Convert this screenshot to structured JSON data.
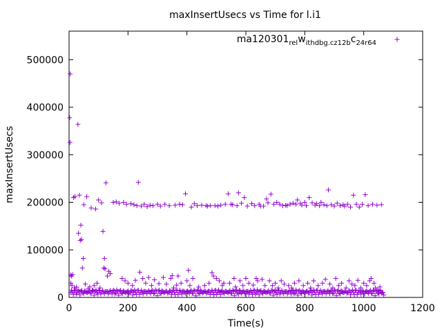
{
  "chart_data": {
    "type": "scatter",
    "title": "maxInsertUsecs vs Time for l.i1",
    "xlabel": "Time(s)",
    "ylabel": "maxInsertUsecs",
    "xlim": [
      0,
      1200
    ],
    "ylim": [
      0,
      560000
    ],
    "xticks": [
      0,
      200,
      400,
      600,
      800,
      1000,
      1200
    ],
    "xtick_labels": [
      "0",
      "200",
      "400",
      "600",
      "800",
      "1000",
      "1200"
    ],
    "yticks": [
      0,
      100000,
      200000,
      300000,
      400000,
      500000
    ],
    "ytick_labels": [
      "0",
      "100000",
      "200000",
      "300000",
      "400000",
      "500000"
    ],
    "legend": {
      "position": "top-right",
      "label_parts": [
        "ma120301",
        "rel",
        "w",
        "ithdbg.cz12b",
        "c",
        "24r64"
      ]
    },
    "marker": "plus",
    "color": "#9400d3",
    "series": [
      {
        "name": "ma120301_rel_withdbg.cz12b_c24r64",
        "points": [
          [
            2,
            378000
          ],
          [
            3,
            326000
          ],
          [
            4,
            470000
          ],
          [
            5,
            47000
          ],
          [
            6,
            30000
          ],
          [
            8,
            45000
          ],
          [
            10,
            25000
          ],
          [
            12,
            48000
          ],
          [
            15,
            210000
          ],
          [
            18,
            20000
          ],
          [
            20,
            212000
          ],
          [
            25,
            22000
          ],
          [
            30,
            364000
          ],
          [
            32,
            135000
          ],
          [
            35,
            215000
          ],
          [
            38,
            120000
          ],
          [
            40,
            152000
          ],
          [
            42,
            122000
          ],
          [
            45,
            62000
          ],
          [
            48,
            82000
          ],
          [
            50,
            195000
          ],
          [
            55,
            28000
          ],
          [
            60,
            212000
          ],
          [
            65,
            18000
          ],
          [
            70,
            22000
          ],
          [
            75,
            188000
          ],
          [
            80,
            15000
          ],
          [
            85,
            25000
          ],
          [
            90,
            186000
          ],
          [
            95,
            30000
          ],
          [
            100,
            205000
          ],
          [
            105,
            20000
          ],
          [
            110,
            199000
          ],
          [
            115,
            139000
          ],
          [
            118,
            62000
          ],
          [
            120,
            82000
          ],
          [
            122,
            60000
          ],
          [
            125,
            241000
          ],
          [
            130,
            45000
          ],
          [
            135,
            55000
          ],
          [
            140,
            50000
          ],
          [
            150,
            200000
          ],
          [
            160,
            201000
          ],
          [
            170,
            198000
          ],
          [
            180,
            40000
          ],
          [
            185,
            200000
          ],
          [
            190,
            35000
          ],
          [
            195,
            196000
          ],
          [
            200,
            30000
          ],
          [
            210,
            197000
          ],
          [
            215,
            25000
          ],
          [
            220,
            195000
          ],
          [
            225,
            36000
          ],
          [
            230,
            193000
          ],
          [
            235,
            242000
          ],
          [
            240,
            53000
          ],
          [
            245,
            192000
          ],
          [
            250,
            40000
          ],
          [
            255,
            196000
          ],
          [
            260,
            30000
          ],
          [
            265,
            191000
          ],
          [
            270,
            42000
          ],
          [
            275,
            194000
          ],
          [
            280,
            25000
          ],
          [
            285,
            193000
          ],
          [
            290,
            37000
          ],
          [
            300,
            196000
          ],
          [
            305,
            29000
          ],
          [
            310,
            192000
          ],
          [
            320,
            42000
          ],
          [
            325,
            196000
          ],
          [
            330,
            28000
          ],
          [
            340,
            193000
          ],
          [
            345,
            40000
          ],
          [
            350,
            46000
          ],
          [
            355,
            20000
          ],
          [
            360,
            194000
          ],
          [
            365,
            26000
          ],
          [
            370,
            45000
          ],
          [
            375,
            196000
          ],
          [
            380,
            30000
          ],
          [
            385,
            195000
          ],
          [
            395,
            218000
          ],
          [
            400,
            35000
          ],
          [
            405,
            57000
          ],
          [
            410,
            25000
          ],
          [
            415,
            190000
          ],
          [
            420,
            40000
          ],
          [
            425,
            197000
          ],
          [
            435,
            193000
          ],
          [
            440,
            22000
          ],
          [
            450,
            194000
          ],
          [
            460,
            25000
          ],
          [
            465,
            193000
          ],
          [
            470,
            192000
          ],
          [
            475,
            30000
          ],
          [
            480,
            193000
          ],
          [
            485,
            52000
          ],
          [
            490,
            45000
          ],
          [
            495,
            193000
          ],
          [
            500,
            40000
          ],
          [
            505,
            192000
          ],
          [
            510,
            35000
          ],
          [
            515,
            194000
          ],
          [
            520,
            25000
          ],
          [
            525,
            30000
          ],
          [
            530,
            196000
          ],
          [
            540,
            218000
          ],
          [
            545,
            30000
          ],
          [
            550,
            196000
          ],
          [
            555,
            195000
          ],
          [
            560,
            40000
          ],
          [
            565,
            22000
          ],
          [
            570,
            193000
          ],
          [
            575,
            220000
          ],
          [
            580,
            35000
          ],
          [
            585,
            198000
          ],
          [
            590,
            25000
          ],
          [
            595,
            210000
          ],
          [
            600,
            40000
          ],
          [
            605,
            192000
          ],
          [
            610,
            30000
          ],
          [
            620,
            197000
          ],
          [
            625,
            26000
          ],
          [
            630,
            193000
          ],
          [
            635,
            40000
          ],
          [
            640,
            35000
          ],
          [
            645,
            196000
          ],
          [
            650,
            192000
          ],
          [
            655,
            38000
          ],
          [
            660,
            192000
          ],
          [
            665,
            25000
          ],
          [
            670,
            207000
          ],
          [
            675,
            199000
          ],
          [
            680,
            35000
          ],
          [
            685,
            217000
          ],
          [
            690,
            25000
          ],
          [
            695,
            196000
          ],
          [
            700,
            30000
          ],
          [
            705,
            200000
          ],
          [
            710,
            20000
          ],
          [
            715,
            196000
          ],
          [
            720,
            35000
          ],
          [
            725,
            193000
          ],
          [
            730,
            28000
          ],
          [
            735,
            194000
          ],
          [
            740,
            193000
          ],
          [
            745,
            25000
          ],
          [
            750,
            196000
          ],
          [
            755,
            20000
          ],
          [
            760,
            198000
          ],
          [
            765,
            30000
          ],
          [
            770,
            196000
          ],
          [
            775,
            205000
          ],
          [
            780,
            35000
          ],
          [
            785,
            198000
          ],
          [
            790,
            194000
          ],
          [
            795,
            25000
          ],
          [
            800,
            200000
          ],
          [
            805,
            193000
          ],
          [
            810,
            30000
          ],
          [
            815,
            210000
          ],
          [
            820,
            20000
          ],
          [
            825,
            199000
          ],
          [
            830,
            35000
          ],
          [
            835,
            194000
          ],
          [
            840,
            197000
          ],
          [
            845,
            25000
          ],
          [
            850,
            193000
          ],
          [
            855,
            200000
          ],
          [
            860,
            30000
          ],
          [
            865,
            195000
          ],
          [
            870,
            38000
          ],
          [
            875,
            193000
          ],
          [
            880,
            226000
          ],
          [
            885,
            28000
          ],
          [
            890,
            195000
          ],
          [
            895,
            20000
          ],
          [
            900,
            192000
          ],
          [
            905,
            40000
          ],
          [
            910,
            198000
          ],
          [
            915,
            25000
          ],
          [
            920,
            193000
          ],
          [
            925,
            30000
          ],
          [
            930,
            195000
          ],
          [
            935,
            192000
          ],
          [
            940,
            20000
          ],
          [
            945,
            196000
          ],
          [
            950,
            35000
          ],
          [
            955,
            190000
          ],
          [
            960,
            28000
          ],
          [
            965,
            215000
          ],
          [
            970,
            25000
          ],
          [
            975,
            196000
          ],
          [
            980,
            36000
          ],
          [
            985,
            190000
          ],
          [
            990,
            20000
          ],
          [
            995,
            196000
          ],
          [
            1000,
            30000
          ],
          [
            1005,
            216000
          ],
          [
            1010,
            25000
          ],
          [
            1015,
            193000
          ],
          [
            1020,
            35000
          ],
          [
            1025,
            40000
          ],
          [
            1030,
            196000
          ],
          [
            1035,
            30000
          ],
          [
            1040,
            20000
          ],
          [
            1045,
            194000
          ],
          [
            1050,
            15000
          ],
          [
            1055,
            22000
          ],
          [
            1060,
            195000
          ],
          [
            1065,
            10000
          ],
          [
            1068,
            5000
          ]
        ]
      }
    ]
  }
}
